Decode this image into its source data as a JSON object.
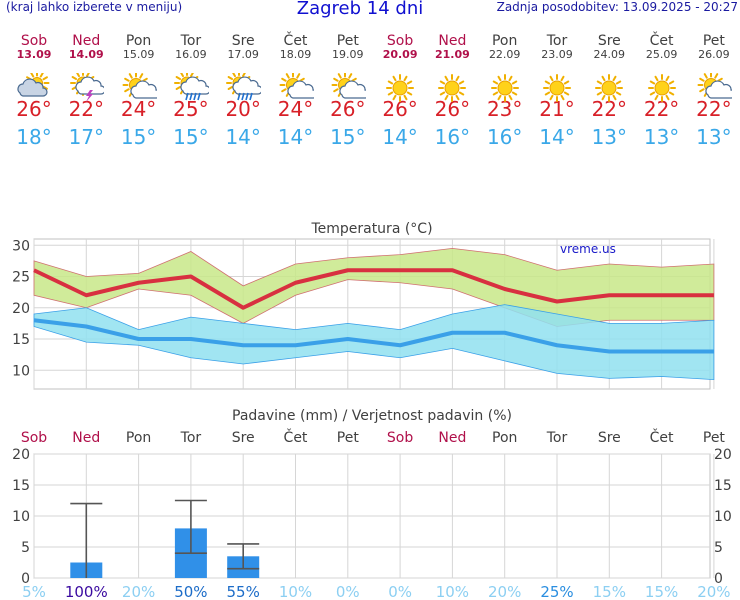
{
  "header": {
    "menu_hint": "(kraj lahko izberete v meniju)",
    "title": "Zagreb 14 dni",
    "updated": "Zadnja posodobitev: 13.09.2025 - 20:27"
  },
  "days": [
    {
      "name": "Sob",
      "date": "13.09",
      "weekend": true,
      "icon": "cloudy-sun-icon",
      "tmax": "26°",
      "tmin": "18°"
    },
    {
      "name": "Ned",
      "date": "14.09",
      "weekend": true,
      "icon": "thunderstorm-icon",
      "tmax": "22°",
      "tmin": "17°"
    },
    {
      "name": "Pon",
      "date": "15.09",
      "weekend": false,
      "icon": "partly-cloudy-icon",
      "tmax": "24°",
      "tmin": "15°"
    },
    {
      "name": "Tor",
      "date": "16.09",
      "weekend": false,
      "icon": "rain-shower-icon",
      "tmax": "25°",
      "tmin": "15°"
    },
    {
      "name": "Sre",
      "date": "17.09",
      "weekend": false,
      "icon": "rain-shower-icon",
      "tmax": "20°",
      "tmin": "14°"
    },
    {
      "name": "Čet",
      "date": "18.09",
      "weekend": false,
      "icon": "partly-cloudy-icon",
      "tmax": "24°",
      "tmin": "14°"
    },
    {
      "name": "Pet",
      "date": "19.09",
      "weekend": false,
      "icon": "partly-cloudy-icon",
      "tmax": "26°",
      "tmin": "15°"
    },
    {
      "name": "Sob",
      "date": "20.09",
      "weekend": true,
      "icon": "sun-icon",
      "tmax": "26°",
      "tmin": "14°"
    },
    {
      "name": "Ned",
      "date": "21.09",
      "weekend": true,
      "icon": "sun-icon",
      "tmax": "26°",
      "tmin": "16°"
    },
    {
      "name": "Pon",
      "date": "22.09",
      "weekend": false,
      "icon": "sun-icon",
      "tmax": "23°",
      "tmin": "16°"
    },
    {
      "name": "Tor",
      "date": "23.09",
      "weekend": false,
      "icon": "sun-icon",
      "tmax": "21°",
      "tmin": "14°"
    },
    {
      "name": "Sre",
      "date": "24.09",
      "weekend": false,
      "icon": "sun-icon",
      "tmax": "22°",
      "tmin": "13°"
    },
    {
      "name": "Čet",
      "date": "25.09",
      "weekend": false,
      "icon": "sun-icon",
      "tmax": "22°",
      "tmin": "13°"
    },
    {
      "name": "Pet",
      "date": "26.09",
      "weekend": false,
      "icon": "partly-cloudy-icon",
      "tmax": "22°",
      "tmin": "13°"
    }
  ],
  "chart_data": [
    {
      "type": "line",
      "title": "Temperatura (°C)",
      "watermark": "vreme.us",
      "ylim": [
        7,
        31
      ],
      "yticks": [
        10,
        15,
        20,
        25,
        30
      ],
      "grid": true,
      "series": [
        {
          "name": "max",
          "color": "#d83040",
          "values": [
            26,
            22,
            24,
            25,
            20,
            24,
            26,
            26,
            26,
            23,
            21,
            22,
            22,
            22
          ]
        },
        {
          "name": "min",
          "color": "#3aa0e8",
          "values": [
            18,
            17,
            15,
            15,
            14,
            14,
            15,
            14,
            16,
            16,
            14,
            13,
            13,
            13
          ]
        }
      ],
      "bands": [
        {
          "color": "#c8e888",
          "upper": [
            27.5,
            25,
            25.5,
            29,
            23.5,
            27,
            28,
            28.5,
            29.5,
            28.5,
            26,
            27,
            26.5,
            27
          ],
          "lower": [
            22,
            20,
            23,
            22,
            17.5,
            22,
            24.5,
            24,
            23,
            20,
            17,
            18,
            18,
            18
          ]
        },
        {
          "color": "#90e0f0",
          "upper": [
            19,
            20,
            16.5,
            18.5,
            17.5,
            16.5,
            17.5,
            16.5,
            19,
            20.5,
            19,
            17.5,
            17.5,
            18
          ],
          "lower": [
            17,
            14.5,
            14,
            12,
            11,
            12,
            13,
            12,
            13.5,
            11.5,
            9.5,
            8.7,
            9,
            8.5
          ]
        }
      ]
    },
    {
      "type": "bar",
      "title": "Padavine (mm) / Verjetnost padavin (%)",
      "categories": [
        "Sob",
        "Ned",
        "Pon",
        "Tor",
        "Sre",
        "Čet",
        "Pet",
        "Sob",
        "Ned",
        "Pon",
        "Tor",
        "Sre",
        "Čet",
        "Pet"
      ],
      "weekend": [
        true,
        true,
        false,
        false,
        false,
        false,
        false,
        true,
        true,
        false,
        false,
        false,
        false,
        false
      ],
      "ylim": [
        0,
        20
      ],
      "yticks": [
        0,
        5,
        10,
        15,
        20
      ],
      "grid": true,
      "values": [
        0,
        2.5,
        0,
        8,
        3.5,
        0,
        0,
        0,
        0,
        0,
        0,
        0,
        0,
        0
      ],
      "error_low": [
        0,
        0,
        0,
        4,
        1.5,
        0,
        0,
        0,
        0,
        0,
        0,
        0,
        0,
        0
      ],
      "error_high": [
        0,
        12,
        0,
        12.5,
        5.5,
        0,
        0,
        0,
        0,
        0,
        0,
        0,
        0,
        0
      ],
      "probability": [
        "5%",
        "100%",
        "20%",
        "50%",
        "55%",
        "10%",
        "0%",
        "0%",
        "10%",
        "20%",
        "25%",
        "15%",
        "15%",
        "20%"
      ],
      "bar_color": "#3090e8"
    }
  ]
}
